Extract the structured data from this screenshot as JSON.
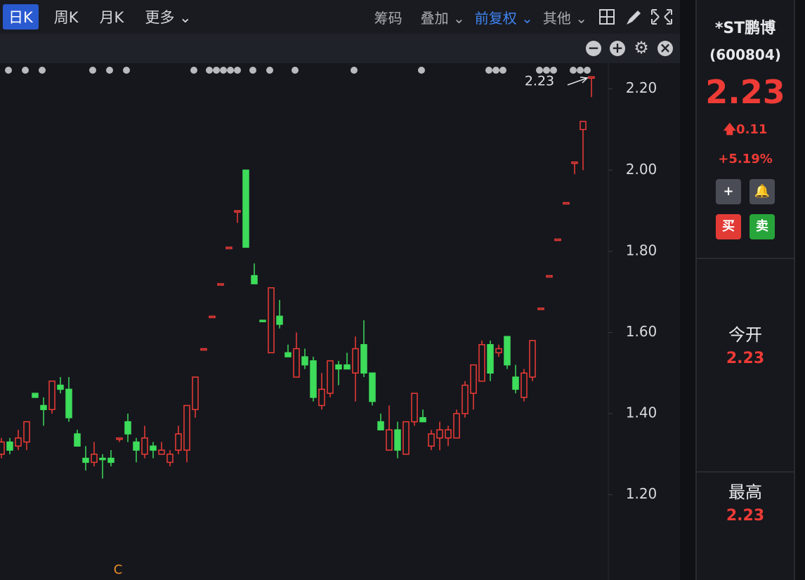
{
  "toolbar": {
    "periods": [
      "日K",
      "周K",
      "月K",
      "更多"
    ],
    "tools": [
      "筹码",
      "叠加",
      "前复权",
      "其他"
    ]
  },
  "chart_data": {
    "type": "candlestick",
    "up_color": "#ee3b36",
    "down_color": "#3ddc5a",
    "categories": [
      null,
      null,
      null,
      null,
      null,
      null,
      null,
      null,
      null,
      null,
      null,
      null,
      null,
      null,
      null,
      null,
      null,
      null,
      null,
      null,
      null,
      null,
      null,
      null,
      null,
      null,
      null,
      null,
      null,
      null,
      null,
      null,
      null,
      null,
      null,
      null,
      null,
      null,
      null,
      null,
      null,
      null,
      null,
      null,
      null,
      null,
      null,
      null,
      null,
      null,
      null,
      null,
      null,
      null,
      null,
      null,
      null,
      null,
      null,
      null,
      null,
      null,
      null,
      null,
      null,
      null,
      null,
      null,
      null,
      null,
      null
    ],
    "open": [
      1.3,
      1.33,
      1.32,
      1.33,
      1.45,
      1.42,
      1.41,
      1.47,
      1.46,
      1.35,
      1.29,
      1.28,
      1.29,
      1.29,
      1.34,
      1.38,
      1.33,
      1.3,
      1.32,
      1.3,
      1.28,
      1.31,
      1.31,
      1.41,
      1.56,
      1.64,
      1.72,
      1.81,
      1.9,
      2.0,
      1.74,
      1.63,
      1.55,
      1.64,
      1.55,
      1.49,
      1.54,
      1.53,
      1.42,
      1.45,
      1.52,
      1.52,
      1.5,
      1.57,
      1.5,
      1.38,
      1.31,
      1.36,
      1.3,
      1.38,
      1.39,
      1.32,
      1.34,
      1.34,
      1.34,
      1.4,
      1.45,
      1.48,
      1.57,
      1.55,
      1.59,
      1.49,
      1.44,
      1.49,
      1.66,
      1.74,
      1.83,
      1.92,
      2.02,
      2.1,
      2.23
    ],
    "high": [
      1.34,
      1.34,
      1.36,
      1.38,
      1.45,
      1.44,
      1.48,
      1.49,
      1.49,
      1.36,
      1.32,
      1.33,
      1.3,
      1.31,
      1.34,
      1.4,
      1.34,
      1.37,
      1.33,
      1.33,
      1.31,
      1.37,
      1.42,
      1.49,
      1.56,
      1.64,
      1.72,
      1.81,
      1.9,
      2.0,
      1.77,
      1.63,
      1.71,
      1.68,
      1.57,
      1.6,
      1.56,
      1.54,
      1.5,
      1.53,
      1.53,
      1.55,
      1.59,
      1.63,
      1.5,
      1.4,
      1.42,
      1.38,
      1.38,
      1.45,
      1.41,
      1.36,
      1.38,
      1.37,
      1.41,
      1.48,
      1.52,
      1.58,
      1.58,
      1.57,
      1.59,
      1.52,
      1.51,
      1.58,
      1.66,
      1.74,
      1.83,
      1.92,
      2.02,
      2.12,
      2.23
    ],
    "low": [
      1.29,
      1.3,
      1.31,
      1.31,
      1.44,
      1.37,
      1.4,
      1.45,
      1.38,
      1.32,
      1.26,
      1.27,
      1.24,
      1.27,
      1.33,
      1.33,
      1.28,
      1.29,
      1.29,
      1.3,
      1.27,
      1.3,
      1.28,
      1.39,
      1.56,
      1.64,
      1.72,
      1.81,
      1.87,
      1.81,
      1.72,
      1.63,
      1.55,
      1.61,
      1.54,
      1.49,
      1.51,
      1.43,
      1.41,
      1.44,
      1.47,
      1.51,
      1.43,
      1.49,
      1.42,
      1.36,
      1.31,
      1.29,
      1.3,
      1.37,
      1.38,
      1.31,
      1.31,
      1.32,
      1.34,
      1.39,
      1.41,
      1.48,
      1.48,
      1.54,
      1.51,
      1.45,
      1.43,
      1.48,
      1.66,
      1.74,
      1.83,
      1.92,
      1.99,
      2.0,
      2.18
    ],
    "close": [
      1.33,
      1.31,
      1.34,
      1.38,
      1.44,
      1.41,
      1.48,
      1.46,
      1.39,
      1.32,
      1.28,
      1.3,
      1.29,
      1.28,
      1.34,
      1.35,
      1.31,
      1.34,
      1.31,
      1.31,
      1.3,
      1.35,
      1.42,
      1.49,
      1.56,
      1.64,
      1.72,
      1.81,
      1.9,
      1.81,
      1.72,
      1.63,
      1.71,
      1.62,
      1.54,
      1.56,
      1.52,
      1.44,
      1.46,
      1.53,
      1.51,
      1.51,
      1.56,
      1.5,
      1.43,
      1.36,
      1.36,
      1.31,
      1.38,
      1.45,
      1.38,
      1.35,
      1.36,
      1.36,
      1.4,
      1.47,
      1.52,
      1.57,
      1.5,
      1.56,
      1.52,
      1.46,
      1.5,
      1.58,
      1.66,
      1.74,
      1.83,
      1.92,
      2.02,
      2.12,
      2.23
    ],
    "ylim": [
      0.99,
      2.26
    ],
    "yticks": [
      {
        "value": 1.2,
        "label": "1.20"
      },
      {
        "value": 1.4,
        "label": "1.40"
      },
      {
        "value": 1.6,
        "label": "1.60"
      },
      {
        "value": 1.8,
        "label": "1.80"
      },
      {
        "value": 2.0,
        "label": "2.00"
      },
      {
        "value": 2.2,
        "label": "2.20"
      }
    ],
    "last_label": 2.23,
    "marker": "C"
  },
  "quote": {
    "name": "*ST鹏博",
    "code": "(600804)",
    "price": 2.23,
    "change": 0.11,
    "change_pct": "+5.19%",
    "buy": "买",
    "sell": "卖",
    "stats": [
      {
        "label": "今开",
        "value": 2.23
      },
      {
        "label": "最高",
        "value": 2.23
      }
    ]
  }
}
